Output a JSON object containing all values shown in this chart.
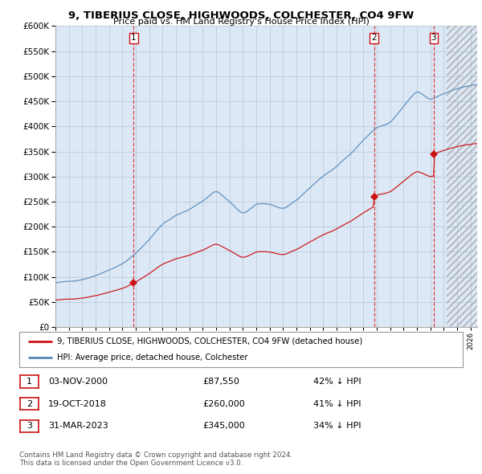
{
  "title": "9, TIBERIUS CLOSE, HIGHWOODS, COLCHESTER, CO4 9FW",
  "subtitle": "Price paid vs. HM Land Registry's House Price Index (HPI)",
  "ylim": [
    0,
    600000
  ],
  "xlim_start": 1995.0,
  "xlim_end": 2026.5,
  "hpi_color": "#5588bb",
  "price_color": "#cc1111",
  "vline_color": "#dd2222",
  "bg_color": "#dce8f5",
  "grid_color": "#bbccdd",
  "transactions": [
    {
      "label": "1",
      "date_num": 2000.84,
      "price": 87550
    },
    {
      "label": "2",
      "date_num": 2018.8,
      "price": 260000
    },
    {
      "label": "3",
      "date_num": 2023.25,
      "price": 345000
    }
  ],
  "transaction_table": [
    {
      "num": "1",
      "date": "03-NOV-2000",
      "price": "£87,550",
      "pct": "42% ↓ HPI"
    },
    {
      "num": "2",
      "date": "19-OCT-2018",
      "price": "£260,000",
      "pct": "41% ↓ HPI"
    },
    {
      "num": "3",
      "date": "31-MAR-2023",
      "price": "£345,000",
      "pct": "34% ↓ HPI"
    }
  ],
  "legend_line1": "9, TIBERIUS CLOSE, HIGHWOODS, COLCHESTER, CO4 9FW (detached house)",
  "legend_line2": "HPI: Average price, detached house, Colchester",
  "footnote": "Contains HM Land Registry data © Crown copyright and database right 2024.\nThis data is licensed under the Open Government Licence v3.0."
}
